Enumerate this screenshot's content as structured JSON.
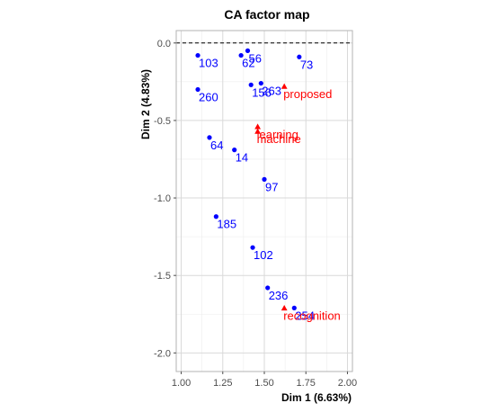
{
  "chart_data": {
    "type": "scatter",
    "title": "CA factor map",
    "xlabel": "Dim 1 (6.63%)",
    "ylabel": "Dim 2 (4.83%)",
    "xlim": [
      0.97,
      2.03
    ],
    "ylim": [
      -2.12,
      0.08
    ],
    "xticks": [
      1.0,
      1.25,
      1.5,
      1.75,
      2.0
    ],
    "xtick_labels": [
      "1.00",
      "1.25",
      "1.50",
      "1.75",
      "2.00"
    ],
    "yticks": [
      0.0,
      -0.5,
      -1.0,
      -1.5,
      -2.0
    ],
    "ytick_labels": [
      "0.0",
      "-0.5",
      "-1.0",
      "-1.5",
      "-2.0"
    ],
    "hline": 0,
    "grid": true,
    "row_color": "#0000ff",
    "col_color": "#ff0000",
    "rows": [
      {
        "label": "103",
        "x": 1.1,
        "y": -0.08
      },
      {
        "label": "62",
        "x": 1.36,
        "y": -0.08
      },
      {
        "label": "56",
        "x": 1.4,
        "y": -0.05
      },
      {
        "label": "73",
        "x": 1.71,
        "y": -0.09
      },
      {
        "label": "260",
        "x": 1.1,
        "y": -0.3
      },
      {
        "label": "156",
        "x": 1.42,
        "y": -0.27
      },
      {
        "label": "263",
        "x": 1.48,
        "y": -0.26
      },
      {
        "label": "64",
        "x": 1.17,
        "y": -0.61
      },
      {
        "label": "14",
        "x": 1.32,
        "y": -0.69
      },
      {
        "label": "97",
        "x": 1.5,
        "y": -0.88
      },
      {
        "label": "185",
        "x": 1.21,
        "y": -1.12
      },
      {
        "label": "102",
        "x": 1.43,
        "y": -1.32
      },
      {
        "label": "236",
        "x": 1.52,
        "y": -1.58
      },
      {
        "label": "254",
        "x": 1.68,
        "y": -1.71
      }
    ],
    "columns": [
      {
        "label": "proposed",
        "x": 1.62,
        "y": -0.28
      },
      {
        "label": "learning",
        "x": 1.46,
        "y": -0.54
      },
      {
        "label": "machine",
        "x": 1.46,
        "y": -0.57
      },
      {
        "label": "recognition",
        "x": 1.62,
        "y": -1.71
      }
    ]
  }
}
